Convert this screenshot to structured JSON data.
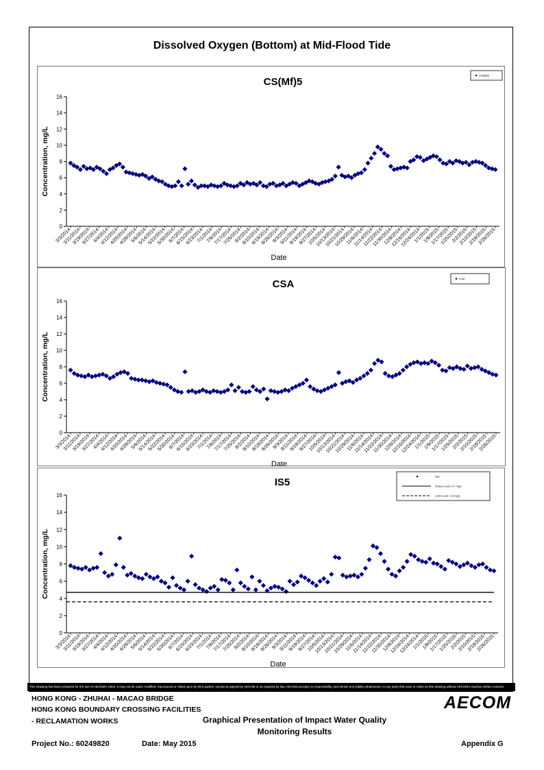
{
  "page_title": "Dissolved Oxygen (Bottom) at Mid-Flood Tide",
  "disclaimer": "This Drawing has been prepared for the use of AECOM's client. It may not be used, modified, reproduced or relied upon by third parties, except as agreed by AECOM or as required by law. AECOM accepts no responsibility, and denies any liability whatsoever, to any party that uses or relies on this drawing without AECOM's express written consent.",
  "title_block": {
    "line1": "HONG KONG - ZHUHAI - MACAO BRIDGE",
    "line2": "HONG KONG BOUNDARY CROSSING FACILITIES",
    "line3": "- RECLAMATION WORKS",
    "description_line1": "Graphical Presentation of Impact Water Quality",
    "description_line2": "Monitoring Results",
    "project_no": "Project No.: 60249820",
    "date": "Date: May 2015",
    "appendix": "Appendix G",
    "logo": "AECOM"
  },
  "chart_data": [
    {
      "type": "scatter",
      "title": "CS(Mf)5",
      "xlabel": "Date",
      "ylabel": "Concentration, mg/L",
      "ylim": [
        0,
        16
      ],
      "yticks": [
        0,
        2,
        4,
        6,
        8,
        10,
        12,
        14,
        16
      ],
      "x_tick_labels": [
        "3/3/2014",
        "3/11/2014",
        "3/19/2014",
        "3/27/2014",
        "4/4/2014",
        "4/12/2014",
        "4/20/2014",
        "4/28/2014",
        "5/6/2014",
        "5/14/2014",
        "5/22/2014",
        "5/30/2014",
        "6/7/2014",
        "6/15/2014",
        "6/23/2014",
        "7/1/2014",
        "7/9/2014",
        "7/17/2014",
        "7/25/2014",
        "8/2/2014",
        "8/10/2014",
        "8/18/2014",
        "8/26/2014",
        "9/3/2014",
        "9/11/2014",
        "9/19/2014",
        "9/27/2014",
        "10/5/2014",
        "10/13/2014",
        "10/21/2014",
        "10/29/2014",
        "11/6/2014",
        "11/14/2014",
        "11/22/2014",
        "11/30/2014",
        "12/8/2014",
        "12/16/2014",
        "12/24/2014",
        "1/1/2015",
        "1/9/2015",
        "1/17/2015",
        "1/25/2015",
        "2/2/2015",
        "2/10/2015",
        "2/18/2015",
        "2/26/2015"
      ],
      "legend": {
        "position": "top-right",
        "entries": [
          "CS(Mf)5"
        ]
      },
      "series": [
        {
          "name": "CS(Mf)5",
          "color": "#000080",
          "marker": "diamond",
          "values": [
            7.8,
            7.5,
            7.3,
            7.0,
            7.4,
            7.1,
            7.2,
            7.0,
            7.3,
            7.1,
            6.8,
            6.5,
            7.0,
            7.2,
            7.5,
            7.7,
            7.3,
            6.7,
            6.6,
            6.5,
            6.4,
            6.3,
            6.4,
            6.2,
            5.9,
            6.1,
            5.8,
            5.6,
            5.5,
            5.2,
            5.0,
            4.9,
            5.0,
            5.5,
            5.0,
            7.1,
            5.2,
            5.6,
            5.1,
            4.8,
            5.0,
            5.0,
            4.9,
            5.1,
            5.0,
            4.9,
            5.0,
            5.3,
            5.1,
            5.0,
            4.9,
            5.0,
            5.3,
            5.1,
            5.4,
            5.2,
            5.3,
            5.1,
            5.4,
            5.0,
            4.9,
            5.2,
            5.3,
            5.0,
            5.1,
            5.3,
            5.0,
            5.2,
            5.4,
            5.3,
            5.0,
            5.2,
            5.4,
            5.6,
            5.5,
            5.3,
            5.2,
            5.4,
            5.5,
            5.6,
            5.8,
            6.2,
            7.3,
            6.3,
            6.1,
            6.2,
            6.0,
            6.3,
            6.5,
            6.6,
            7.0,
            7.8,
            8.4,
            9.0,
            9.8,
            9.5,
            9.0,
            8.7,
            7.4,
            7.0,
            7.1,
            7.2,
            7.3,
            7.2,
            8.0,
            8.2,
            8.6,
            8.5,
            8.1,
            8.3,
            8.5,
            8.7,
            8.6,
            8.2,
            7.8,
            7.7,
            8.0,
            7.8,
            8.1,
            8.0,
            7.8,
            7.9,
            7.6,
            7.9,
            8.0,
            7.9,
            7.8,
            7.5,
            7.2,
            7.1,
            7.0
          ]
        }
      ]
    },
    {
      "type": "scatter",
      "title": "CSA",
      "xlabel": "Date",
      "ylabel": "Concentration, mg/L",
      "ylim": [
        0,
        16
      ],
      "yticks": [
        0,
        2,
        4,
        6,
        8,
        10,
        12,
        14,
        16
      ],
      "x_tick_labels": [
        "3/3/2014",
        "3/11/2014",
        "3/19/2014",
        "3/27/2014",
        "4/4/2014",
        "4/12/2014",
        "4/20/2014",
        "4/28/2014",
        "5/6/2014",
        "5/14/2014",
        "5/22/2014",
        "5/30/2014",
        "6/7/2014",
        "6/15/2014",
        "6/23/2014",
        "7/1/2014",
        "7/9/2014",
        "7/17/2014",
        "7/25/2014",
        "8/2/2014",
        "8/10/2014",
        "8/18/2014",
        "8/26/2014",
        "9/3/2014",
        "9/11/2014",
        "9/19/2014",
        "9/27/2014",
        "10/5/2014",
        "10/13/2014",
        "10/21/2014",
        "10/29/2014",
        "11/6/2014",
        "11/14/2014",
        "11/22/2014",
        "11/30/2014",
        "12/8/2014",
        "12/16/2014",
        "12/24/2014",
        "1/1/2015",
        "1/9/2015",
        "1/17/2015",
        "1/25/2015",
        "2/2/2015",
        "2/10/2015",
        "2/18/2015",
        "2/26/2015"
      ],
      "legend": {
        "position": "top-right",
        "entries": [
          "CSA"
        ]
      },
      "series": [
        {
          "name": "CSA",
          "color": "#000080",
          "marker": "diamond",
          "values": [
            7.6,
            7.2,
            7.0,
            6.9,
            6.8,
            7.0,
            6.8,
            6.9,
            7.0,
            7.1,
            6.9,
            6.6,
            6.8,
            7.1,
            7.3,
            7.4,
            7.2,
            6.6,
            6.5,
            6.4,
            6.4,
            6.3,
            6.2,
            6.3,
            6.1,
            6.0,
            5.9,
            5.8,
            5.5,
            5.2,
            5.0,
            4.9,
            7.4,
            5.0,
            5.1,
            4.9,
            5.0,
            5.2,
            5.0,
            4.9,
            5.1,
            5.0,
            4.9,
            5.0,
            5.2,
            5.8,
            5.1,
            5.5,
            5.0,
            4.9,
            5.0,
            5.6,
            5.2,
            5.0,
            5.3,
            4.1,
            5.1,
            5.0,
            4.9,
            5.0,
            5.2,
            5.1,
            5.4,
            5.6,
            5.8,
            6.0,
            6.4,
            5.6,
            5.3,
            5.1,
            5.0,
            5.2,
            5.4,
            5.6,
            5.8,
            7.3,
            6.0,
            6.2,
            6.3,
            6.1,
            6.4,
            6.6,
            6.9,
            7.2,
            7.6,
            8.4,
            8.8,
            8.6,
            7.2,
            6.9,
            6.8,
            7.0,
            7.2,
            7.6,
            8.0,
            8.3,
            8.5,
            8.6,
            8.4,
            8.5,
            8.4,
            8.7,
            8.5,
            8.2,
            7.6,
            7.5,
            7.9,
            7.8,
            8.0,
            7.8,
            7.7,
            8.1,
            7.8,
            7.9,
            8.0,
            7.7,
            7.5,
            7.3,
            7.1,
            7.0
          ]
        }
      ]
    },
    {
      "type": "scatter",
      "title": "IS5",
      "xlabel": "Date",
      "ylabel": "Concentration, mg/L",
      "ylim": [
        0,
        16
      ],
      "yticks": [
        0,
        2,
        4,
        6,
        8,
        10,
        12,
        14,
        16
      ],
      "x_tick_labels": [
        "3/3/2014",
        "3/11/2014",
        "3/19/2014",
        "3/27/2014",
        "4/4/2014",
        "4/12/2014",
        "4/20/2014",
        "4/28/2014",
        "5/6/2014",
        "5/14/2014",
        "5/22/2014",
        "5/30/2014",
        "6/7/2014",
        "6/15/2014",
        "6/23/2014",
        "7/1/2014",
        "7/9/2014",
        "7/17/2014",
        "7/25/2014",
        "8/2/2014",
        "8/10/2014",
        "8/18/2014",
        "8/26/2014",
        "9/3/2014",
        "9/11/2014",
        "9/19/2014",
        "9/27/2014",
        "10/5/2014",
        "10/13/2014",
        "10/21/2014",
        "10/29/2014",
        "11/6/2014",
        "11/14/2014",
        "11/22/2014",
        "11/30/2014",
        "12/8/2014",
        "12/16/2014",
        "12/24/2014",
        "1/1/2015",
        "1/9/2015",
        "1/17/2015",
        "1/25/2015",
        "2/2/2015",
        "2/10/2015",
        "2/18/2015",
        "2/26/2015"
      ],
      "legend": {
        "position": "top-right",
        "entries": [
          "IS5",
          "Action Level: 4.7 mg/L",
          "Limit Level: 3.6 mg/L"
        ]
      },
      "series": [
        {
          "name": "IS5",
          "color": "#000080",
          "marker": "diamond",
          "values": [
            7.8,
            7.6,
            7.5,
            7.4,
            7.6,
            7.3,
            7.5,
            7.6,
            9.2,
            7.0,
            6.6,
            6.8,
            7.9,
            11.0,
            7.6,
            6.7,
            6.9,
            6.6,
            6.4,
            6.3,
            6.8,
            6.5,
            6.3,
            6.5,
            6.0,
            5.8,
            5.3,
            6.4,
            5.5,
            5.2,
            5.0,
            6.0,
            8.9,
            5.6,
            5.2,
            5.0,
            4.8,
            5.2,
            5.4,
            5.0,
            6.2,
            6.1,
            5.8,
            5.0,
            7.3,
            5.8,
            5.4,
            5.1,
            6.5,
            5.0,
            6.0,
            5.5,
            4.9,
            5.2,
            5.4,
            5.3,
            5.1,
            4.8,
            6.0,
            5.6,
            5.9,
            6.6,
            6.4,
            6.1,
            5.8,
            5.5,
            6.0,
            6.3,
            5.9,
            6.8,
            8.8,
            8.7,
            6.7,
            6.5,
            6.6,
            6.7,
            6.5,
            6.8,
            7.5,
            8.5,
            10.1,
            9.9,
            9.2,
            8.3,
            7.4,
            6.8,
            6.6,
            7.2,
            7.6,
            8.3,
            9.1,
            8.9,
            8.5,
            8.3,
            8.2,
            8.6,
            8.1,
            8.0,
            7.7,
            7.4,
            8.4,
            8.2,
            8.0,
            7.7,
            7.9,
            8.1,
            7.8,
            7.6,
            7.9,
            8.0,
            7.6,
            7.3,
            7.2
          ]
        },
        {
          "name": "Action Level: 4.7 mg/L",
          "type": "hline",
          "value": 4.7,
          "style": "solid",
          "color": "#000000"
        },
        {
          "name": "Limit Level: 3.6 mg/L",
          "type": "hline",
          "value": 3.6,
          "style": "dashed",
          "color": "#000000"
        }
      ]
    }
  ]
}
